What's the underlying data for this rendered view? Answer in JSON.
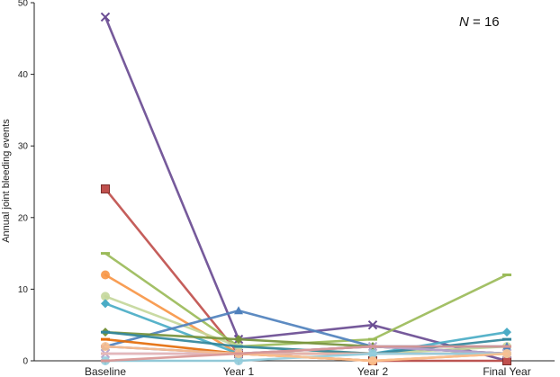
{
  "chart_data": {
    "type": "line",
    "ylabel": "Annual joint bleeding events",
    "xlabel": "",
    "annotation": {
      "prefix": "N",
      "text": " = 16"
    },
    "categories": [
      "Baseline",
      "Year 1",
      "Year 2",
      "Final Year"
    ],
    "ylim": [
      0,
      50
    ],
    "yticks": [
      "0",
      "10",
      "20",
      "30",
      "40",
      "50"
    ],
    "grid": false,
    "series": [
      {
        "color": "#6a4c93",
        "marker": "x",
        "values": [
          48,
          3,
          5,
          0
        ]
      },
      {
        "color": "#c0504d",
        "marker": "square",
        "values": [
          24,
          1,
          0,
          0
        ]
      },
      {
        "color": "#9bbb59",
        "marker": "dash",
        "values": [
          15,
          2,
          3,
          12
        ]
      },
      {
        "color": "#f79646",
        "marker": "circle",
        "values": [
          12,
          1,
          0,
          1
        ]
      },
      {
        "color": "#c4d79b",
        "marker": "circle",
        "values": [
          9,
          2,
          1,
          2
        ]
      },
      {
        "color": "#4aacc6",
        "marker": "diamond",
        "values": [
          8,
          1,
          1,
          4
        ]
      },
      {
        "color": "#4f81bd",
        "marker": "triangle",
        "values": [
          2,
          7,
          2,
          2
        ]
      },
      {
        "color": "#76923c",
        "marker": "diamond",
        "values": [
          4,
          3,
          2,
          1
        ]
      },
      {
        "color": "#31859b",
        "marker": "dash",
        "values": [
          4,
          2,
          1,
          3
        ]
      },
      {
        "color": "#e46c0a",
        "marker": "dash",
        "values": [
          3,
          1,
          1,
          1
        ]
      },
      {
        "color": "#8064a2",
        "marker": "dash",
        "values": [
          2,
          1,
          2,
          1
        ]
      },
      {
        "color": "#b9a7cf",
        "marker": "x",
        "values": [
          1,
          1,
          2,
          1
        ]
      },
      {
        "color": "#e6b9b8",
        "marker": "dash",
        "values": [
          1,
          1,
          1,
          1
        ]
      },
      {
        "color": "#93cddd",
        "marker": "circle",
        "values": [
          0,
          0,
          1,
          1
        ]
      },
      {
        "color": "#fac090",
        "marker": "circle",
        "values": [
          2,
          1,
          0,
          1
        ]
      },
      {
        "color": "#d99694",
        "marker": "dash",
        "values": [
          0,
          1,
          2,
          2
        ]
      }
    ]
  }
}
